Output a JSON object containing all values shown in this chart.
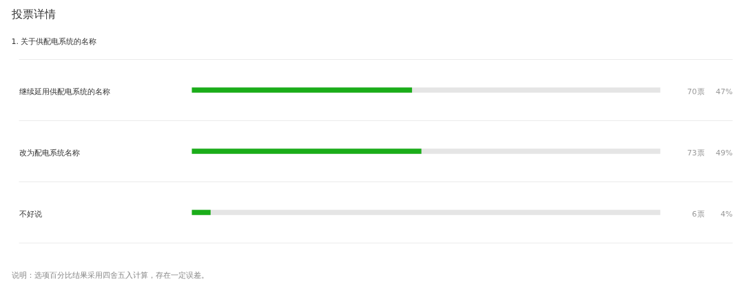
{
  "chart_data": {
    "type": "bar",
    "orientation": "horizontal",
    "title": "投票详情",
    "subtitle": "1. 关于供配电系统的名称",
    "categories": [
      "继续延用供配电系统的名称",
      "改为配电系统名称",
      "不好说"
    ],
    "values": [
      47,
      49,
      4
    ],
    "color": "#1aad19",
    "xlim": [
      0,
      100
    ],
    "value_labels": [
      "47%",
      "49%",
      "4%"
    ],
    "annotations": [
      "70票",
      "73票",
      "6票",
      "说明：选项百分比结果采用四舍五入计算，存在一定误差。"
    ],
    "grid": "y",
    "tick_labels": "y"
  }
}
